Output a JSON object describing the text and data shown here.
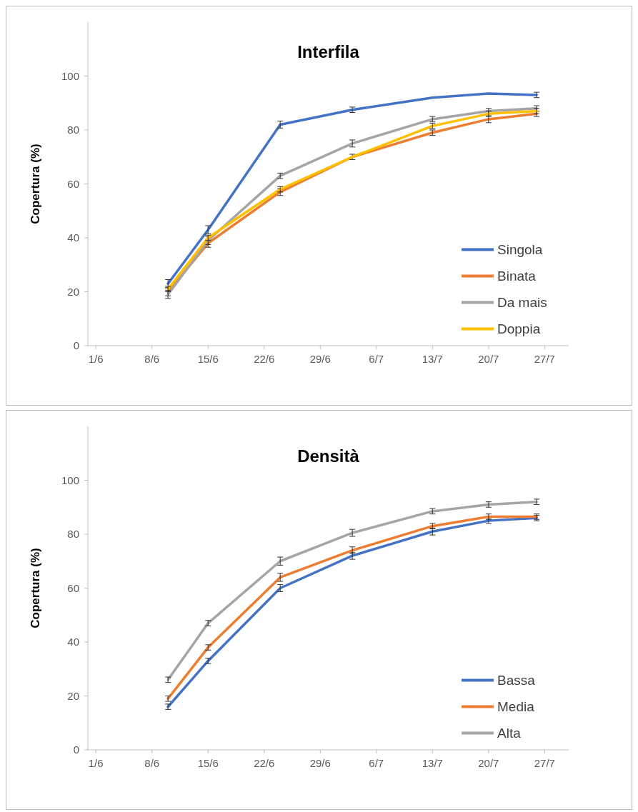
{
  "chart_data": [
    {
      "type": "line",
      "title": "Interfila",
      "ylabel": "Copertura (%)",
      "x": [
        "--06-10",
        "--06-15",
        "--06-24",
        "--07-03",
        "--07-13",
        "--07-20",
        "--07-26"
      ],
      "xlim": [
        "--05-31",
        "--07-30"
      ],
      "xticks": [
        {
          "value": "--06-01",
          "label": "1/6"
        },
        {
          "value": "--06-08",
          "label": "8/6"
        },
        {
          "value": "--06-15",
          "label": "15/6"
        },
        {
          "value": "--06-22",
          "label": "22/6"
        },
        {
          "value": "--06-29",
          "label": "29/6"
        },
        {
          "value": "--07-06",
          "label": "6/7"
        },
        {
          "value": "--07-13",
          "label": "13/7"
        },
        {
          "value": "--07-20",
          "label": "20/7"
        },
        {
          "value": "--07-27",
          "label": "27/7"
        }
      ],
      "ylim": [
        0,
        120
      ],
      "yticks": [
        0,
        20,
        40,
        60,
        80,
        100
      ],
      "legend": "bottom right",
      "series": [
        {
          "name": "Singola",
          "color": "#4472c4",
          "values": [
            23,
            43,
            82,
            87.5,
            92,
            93.5,
            93
          ],
          "errors": [
            1.5,
            1.5,
            1.3,
            1,
            null,
            null,
            1
          ]
        },
        {
          "name": "Binata",
          "color": "#ed7d31",
          "values": [
            20,
            38,
            57,
            70,
            79,
            84,
            86
          ],
          "errors": [
            1.5,
            1.5,
            1.3,
            1,
            1,
            1.3,
            1
          ]
        },
        {
          "name": "Da mais",
          "color": "#a5a5a5",
          "values": [
            19,
            39,
            63,
            75,
            84,
            87,
            88
          ],
          "errors": [
            1.5,
            1.5,
            1,
            1.3,
            1,
            1,
            1
          ]
        },
        {
          "name": "Doppia",
          "color": "#ffc000",
          "values": [
            21,
            40,
            58,
            70,
            81.5,
            86,
            87
          ],
          "errors": [
            1,
            1,
            1,
            null,
            1,
            1,
            1
          ]
        }
      ]
    },
    {
      "type": "line",
      "title": "Densità",
      "ylabel": "Copertura (%)",
      "x": [
        "--06-10",
        "--06-15",
        "--06-24",
        "--07-03",
        "--07-13",
        "--07-20",
        "--07-26"
      ],
      "xlim": [
        "--05-31",
        "--07-30"
      ],
      "xticks": [
        {
          "value": "--06-01",
          "label": "1/6"
        },
        {
          "value": "--06-08",
          "label": "8/6"
        },
        {
          "value": "--06-15",
          "label": "15/6"
        },
        {
          "value": "--06-22",
          "label": "22/6"
        },
        {
          "value": "--06-29",
          "label": "29/6"
        },
        {
          "value": "--07-06",
          "label": "6/7"
        },
        {
          "value": "--07-13",
          "label": "13/7"
        },
        {
          "value": "--07-20",
          "label": "20/7"
        },
        {
          "value": "--07-27",
          "label": "27/7"
        }
      ],
      "ylim": [
        0,
        120
      ],
      "yticks": [
        0,
        20,
        40,
        60,
        80,
        100
      ],
      "legend": "bottom right",
      "series": [
        {
          "name": "Bassa",
          "color": "#4472c4",
          "values": [
            16,
            33,
            60,
            72,
            81,
            85,
            86
          ],
          "errors": [
            1,
            1,
            1.3,
            1.3,
            1.3,
            1,
            1
          ]
        },
        {
          "name": "Media",
          "color": "#ed7d31",
          "values": [
            19,
            38,
            64,
            74,
            83,
            86.5,
            86.5
          ],
          "errors": [
            1,
            1,
            1.5,
            1.3,
            1,
            1,
            1
          ]
        },
        {
          "name": "Alta",
          "color": "#a5a5a5",
          "values": [
            26,
            47,
            70,
            80.5,
            88.5,
            91,
            92
          ],
          "errors": [
            1,
            1,
            1.5,
            1.3,
            1,
            1,
            1
          ]
        }
      ]
    }
  ]
}
